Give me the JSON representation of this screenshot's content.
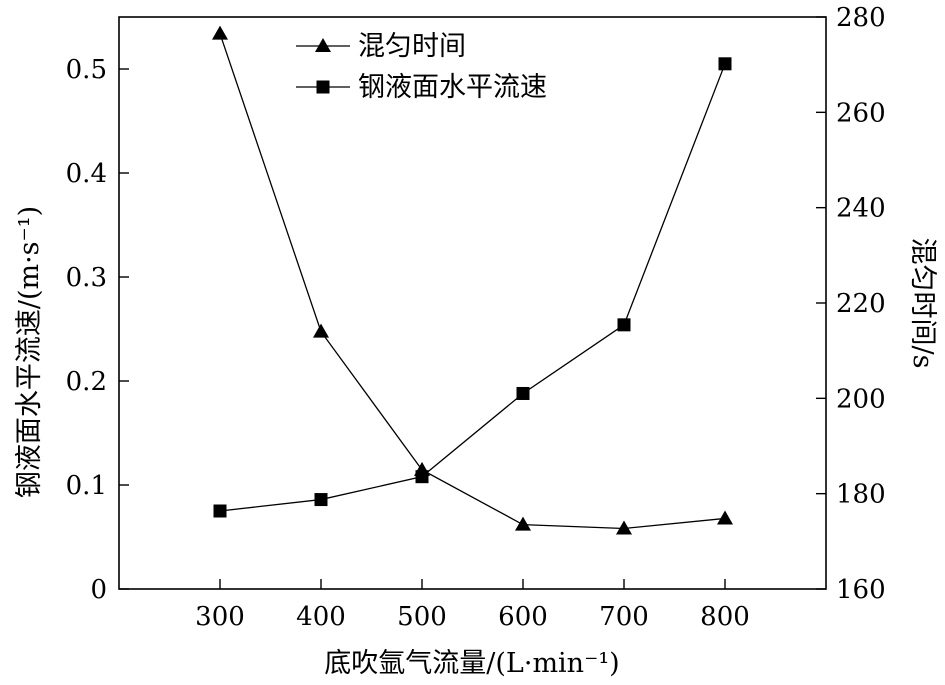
{
  "chart_data": {
    "type": "line",
    "title": "",
    "xlabel": "底吹氩气流量/(L·min⁻¹)",
    "ylabel_left": "钢液面水平流速/(m·s⁻¹)",
    "ylabel_right": "混匀时间/s",
    "x": [
      300,
      400,
      500,
      600,
      700,
      800
    ],
    "xlim": [
      200,
      900
    ],
    "x_ticks": [
      "300",
      "400",
      "500",
      "600",
      "700",
      "800"
    ],
    "ylim_left": [
      0,
      0.55
    ],
    "y_ticks_left": [
      "0",
      "0.1",
      "0.2",
      "0.3",
      "0.4",
      "0.5"
    ],
    "ylim_right": [
      160,
      280
    ],
    "y_ticks_right": [
      "160",
      "180",
      "200",
      "220",
      "240",
      "260",
      "280"
    ],
    "grid": false,
    "legend_position": "top-center",
    "series": [
      {
        "name": "混匀时间",
        "axis": "right",
        "marker": "triangle",
        "values": [
          276.5,
          214,
          185,
          173.5,
          172.7,
          174.8
        ]
      },
      {
        "name": "钢液面水平流速",
        "axis": "left",
        "marker": "square",
        "values": [
          0.075,
          0.086,
          0.108,
          0.188,
          0.254,
          0.505
        ]
      }
    ]
  }
}
